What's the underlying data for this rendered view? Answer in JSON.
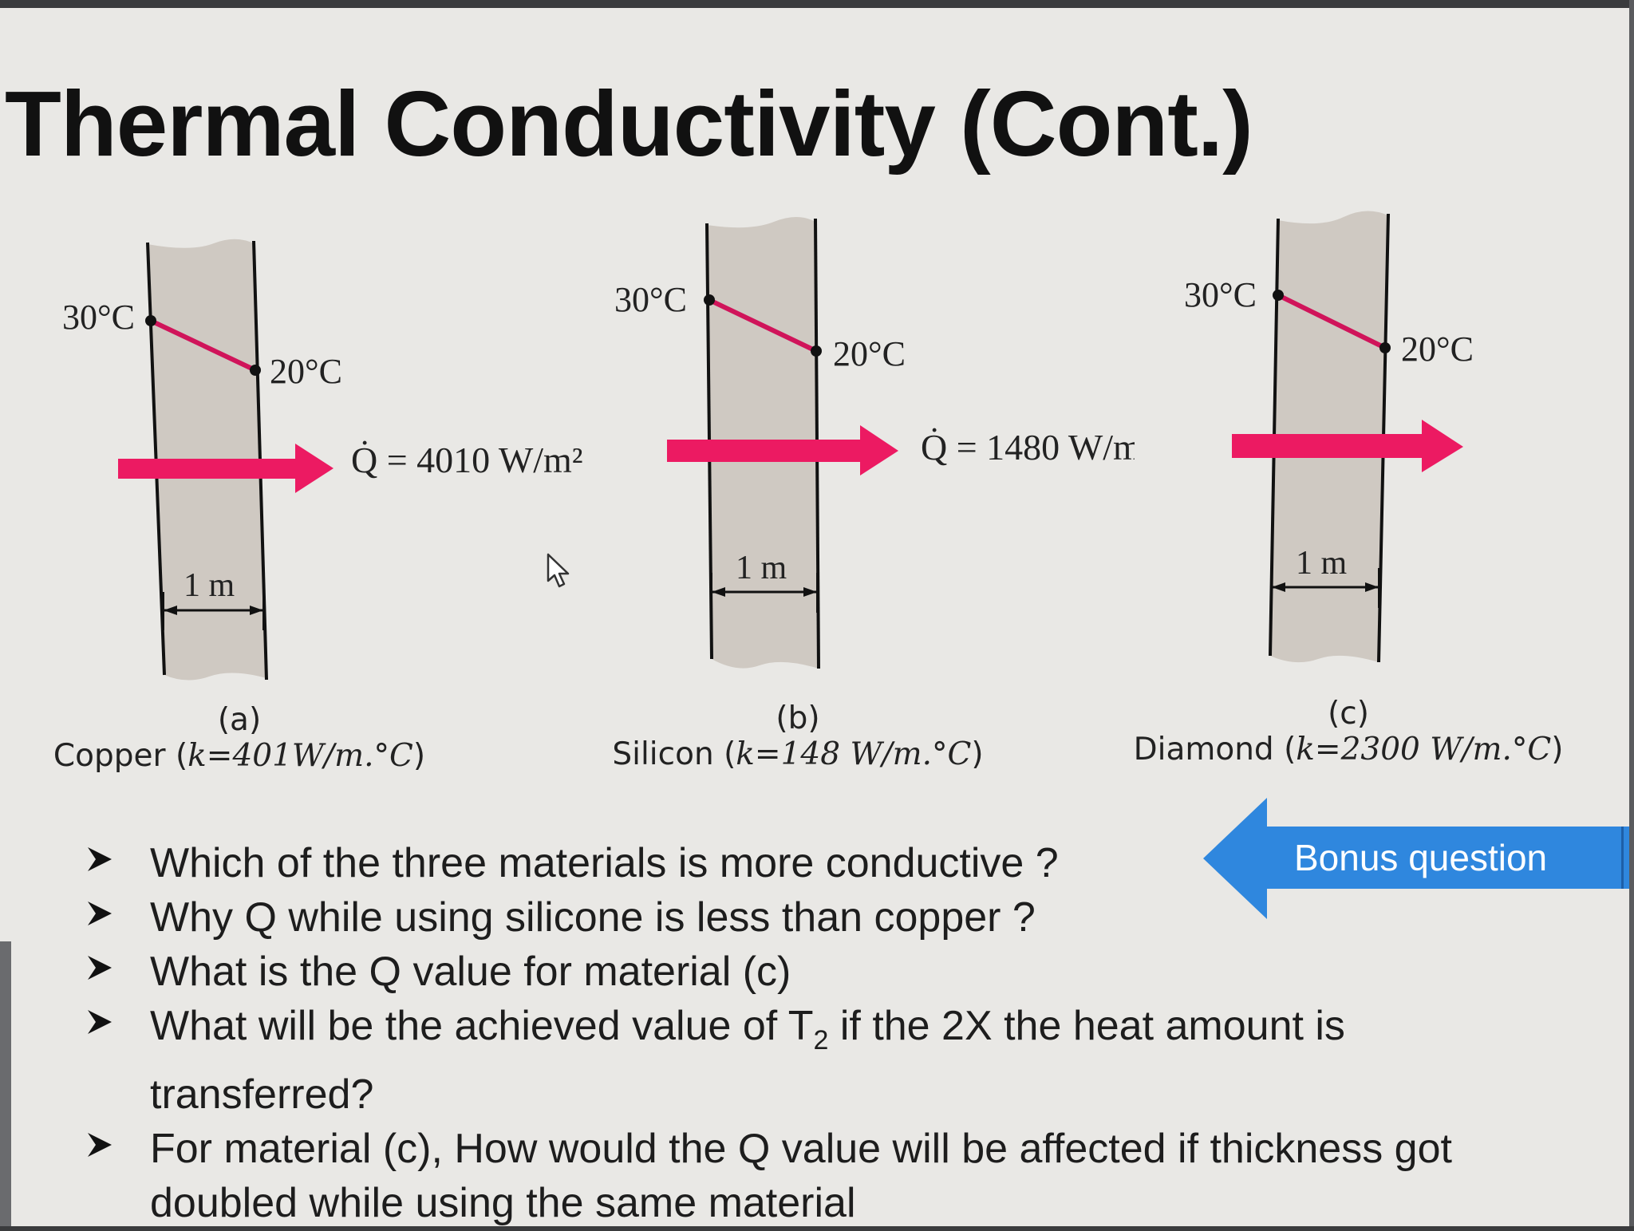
{
  "slide": {
    "title": "Thermal Conductivity (Cont.)"
  },
  "diagrams": [
    {
      "hot_temp": "30°C",
      "cold_temp": "20°C",
      "heat_flux": "Q̇ = 4010 W/m²",
      "thickness": "1 m",
      "letter": "(a)",
      "material": "Copper",
      "conductivity": "k=401W/m.°C"
    },
    {
      "hot_temp": "30°C",
      "cold_temp": "20°C",
      "heat_flux": "Q̇ = 1480 W/m",
      "thickness": "1 m",
      "letter": "(b)",
      "material": "Silicon",
      "conductivity": "k=148 W/m.°C"
    },
    {
      "hot_temp": "30°C",
      "cold_temp": "20°C",
      "thickness": "1 m",
      "letter": "(c)",
      "material": "Diamond",
      "conductivity": "k=2300 W/m.°C"
    }
  ],
  "questions": [
    "Which of the three materials is more conductive ?",
    "Why Q while using silicone is less than copper ?",
    "What is the Q value for material (c)",
    {
      "before": "What will be the achieved value of T",
      "sub": "2",
      "after": " if the 2X the heat amount is",
      "line2": "transferred?"
    },
    {
      "line1": "For material (c), How would the Q value will be affected if thickness got",
      "line2": "doubled while using the same material"
    }
  ],
  "bonus": {
    "label": "Bonus question"
  },
  "colors": {
    "arrow": "#ec1a62",
    "wall": "#cfc9c2",
    "temp_line": "#d0145a",
    "bonus_arrow": "#2f87de"
  },
  "icons": {
    "bullet": "arrowhead-bullet-icon",
    "cursor": "mouse-pointer-icon"
  }
}
